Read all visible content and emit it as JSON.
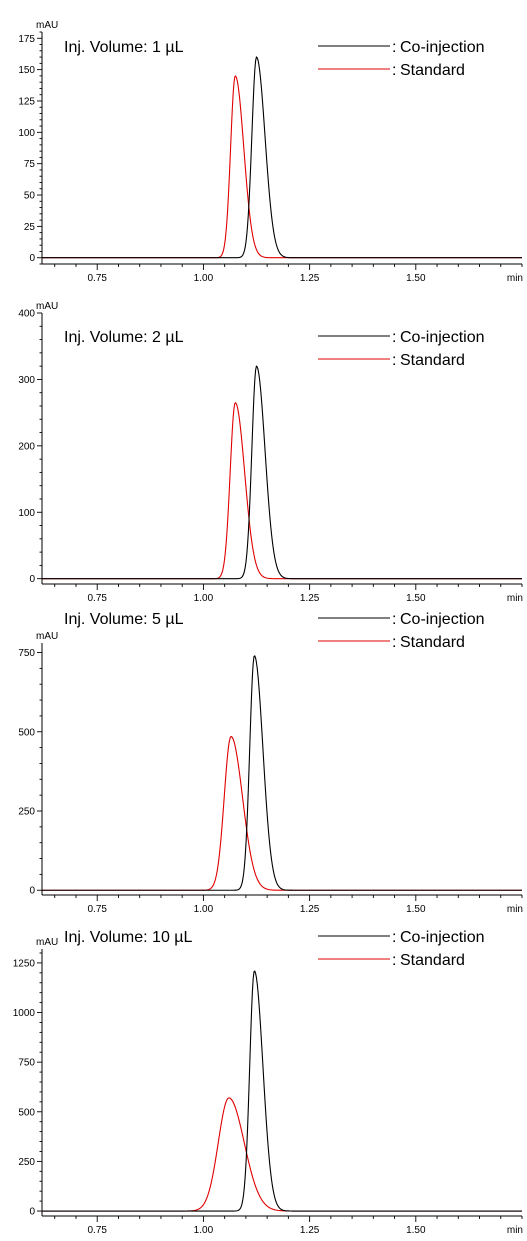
{
  "chart_data": [
    {
      "type": "line",
      "title": "",
      "annotation": "Inj. Volume: 1 µL",
      "xlabel": "min",
      "ylabel": "mAU",
      "xlim": [
        0.62,
        1.75
      ],
      "ylim": [
        -5,
        180
      ],
      "xticks": [
        0.75,
        1.0,
        1.25,
        1.5
      ],
      "xtick_labels": [
        "0.75",
        "1.00",
        "1.25",
        "1.50"
      ],
      "yticks": [
        0,
        25,
        50,
        75,
        100,
        125,
        150,
        175
      ],
      "ytick_labels": [
        "0",
        "25",
        "50",
        "75",
        "100",
        "125",
        "150",
        "175"
      ],
      "legend_placement": "top-right",
      "grid": false,
      "series": [
        {
          "name": "Co-injection",
          "color": "#000000",
          "peak_x": 1.125,
          "peak_y": 160,
          "sigma_left": 0.011,
          "sigma_right": 0.02
        },
        {
          "name": "Standard",
          "color": "#e00000",
          "peak_x": 1.075,
          "peak_y": 145,
          "sigma_left": 0.011,
          "sigma_right": 0.02
        }
      ]
    },
    {
      "type": "line",
      "title": "",
      "annotation": "Inj. Volume: 2 µL",
      "xlabel": "min",
      "ylabel": "mAU",
      "xlim": [
        0.62,
        1.75
      ],
      "ylim": [
        -8,
        400
      ],
      "xticks": [
        0.75,
        1.0,
        1.25,
        1.5
      ],
      "xtick_labels": [
        "0.75",
        "1.00",
        "1.25",
        "1.50"
      ],
      "yticks": [
        0,
        100,
        200,
        300,
        400
      ],
      "ytick_labels": [
        "0",
        "100",
        "200",
        "300",
        "400"
      ],
      "legend_placement": "top-right",
      "grid": false,
      "series": [
        {
          "name": "Co-injection",
          "color": "#000000",
          "peak_x": 1.125,
          "peak_y": 320,
          "sigma_left": 0.011,
          "sigma_right": 0.02
        },
        {
          "name": "Standard",
          "color": "#e00000",
          "peak_x": 1.075,
          "peak_y": 265,
          "sigma_left": 0.012,
          "sigma_right": 0.022
        }
      ]
    },
    {
      "type": "line",
      "title": "",
      "annotation": "Inj. Volume: 5 µL",
      "xlabel": "min",
      "ylabel": "mAU",
      "xlim": [
        0.62,
        1.75
      ],
      "ylim": [
        -15,
        780
      ],
      "xticks": [
        0.75,
        1.0,
        1.25,
        1.5
      ],
      "xtick_labels": [
        "0.75",
        "1.00",
        "1.25",
        "1.50"
      ],
      "yticks": [
        0,
        250,
        500,
        750
      ],
      "ytick_labels": [
        "0",
        "250",
        "500",
        "750"
      ],
      "legend_placement": "top-right",
      "grid": false,
      "series": [
        {
          "name": "Co-injection",
          "color": "#000000",
          "peak_x": 1.12,
          "peak_y": 740,
          "sigma_left": 0.011,
          "sigma_right": 0.02
        },
        {
          "name": "Standard",
          "color": "#e00000",
          "peak_x": 1.065,
          "peak_y": 485,
          "sigma_left": 0.016,
          "sigma_right": 0.027
        }
      ]
    },
    {
      "type": "line",
      "title": "",
      "annotation": "Inj. Volume: 10 µL",
      "xlabel": "min",
      "ylabel": "mAU",
      "xlim": [
        0.62,
        1.75
      ],
      "ylim": [
        -25,
        1320
      ],
      "xticks": [
        0.75,
        1.0,
        1.25,
        1.5
      ],
      "xtick_labels": [
        "0.75",
        "1.00",
        "1.25",
        "1.50"
      ],
      "yticks": [
        0,
        250,
        500,
        750,
        1000,
        1250
      ],
      "ytick_labels": [
        "0",
        "250",
        "500",
        "750",
        "1000",
        "1250"
      ],
      "legend_placement": "top-right",
      "grid": false,
      "series": [
        {
          "name": "Co-injection",
          "color": "#000000",
          "peak_x": 1.12,
          "peak_y": 1210,
          "sigma_left": 0.011,
          "sigma_right": 0.02
        },
        {
          "name": "Standard",
          "color": "#e00000",
          "peak_x": 1.06,
          "peak_y": 570,
          "sigma_left": 0.025,
          "sigma_right": 0.036
        }
      ]
    }
  ]
}
